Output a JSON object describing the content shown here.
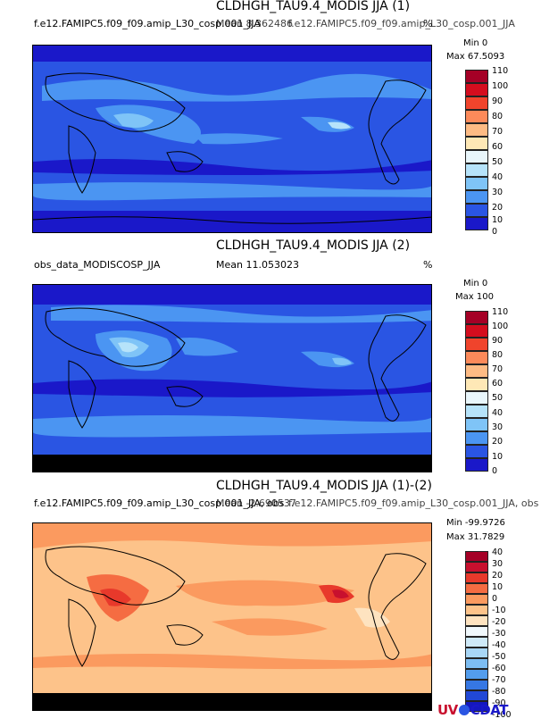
{
  "panels": [
    {
      "title": "CLDHGH_TAU9.4_MODIS JJA (1)",
      "left_label": "f.e12.FAMIPC5.f09_f09.amip_L30_cosp.001_JJA",
      "mean_label": "Mean 8.362486",
      "overlap_label": "f.e12.FAMIPC5.f09_f09.amip_L30_cosp.001_JJA",
      "units": "%",
      "min_label": "Min 0",
      "max_label": "Max 67.5093",
      "colorbar_labels": [
        "110",
        "100",
        "90",
        "80",
        "70",
        "60",
        "50",
        "40",
        "30",
        "20",
        "10",
        "0"
      ],
      "colors": [
        "#a50026",
        "#d40d1e",
        "#f0442c",
        "#fc8a5a",
        "#fdbb84",
        "#fee8b6",
        "#e9f6fb",
        "#b6e3fa",
        "#7fc4f7",
        "#4b95f2",
        "#2a55e3",
        "#1a18c9"
      ]
    },
    {
      "title": "CLDHGH_TAU9.4_MODIS JJA (2)",
      "left_label": "obs_data_MODISCOSP_JJA",
      "mean_label": "Mean 11.053023",
      "overlap_label": "",
      "units": "%",
      "min_label": "Min 0",
      "max_label": "Max 100",
      "colorbar_labels": [
        "110",
        "100",
        "90",
        "80",
        "70",
        "60",
        "50",
        "40",
        "30",
        "20",
        "10",
        "0"
      ],
      "colors": [
        "#a50026",
        "#d40d1e",
        "#f0442c",
        "#fc8a5a",
        "#fdbb84",
        "#fee8b6",
        "#e9f6fb",
        "#b6e3fa",
        "#7fc4f7",
        "#4b95f2",
        "#2a55e3",
        "#1a18c9"
      ]
    },
    {
      "title": "CLDHGH_TAU9.4_MODIS JJA (1)-(2)",
      "left_label": "f.e12.FAMIPC5.f09_f09.amip_L30_cosp.001_JJA, obs",
      "mean_label": "Mean -2.690537",
      "overlap_label": "f.e12.FAMIPC5.f09_f09.amip_L30_cosp.001_JJA, obs",
      "units": "",
      "min_label": "Min -99.9726",
      "max_label": "Max 31.7829",
      "colorbar_labels": [
        "40",
        "30",
        "20",
        "10",
        "0",
        "-10",
        "-20",
        "-30",
        "-40",
        "-50",
        "-60",
        "-70",
        "-80",
        "-90",
        "-100"
      ],
      "colors": [
        "#a50026",
        "#c8102e",
        "#e8392b",
        "#f56c42",
        "#fb9a5f",
        "#fdc38a",
        "#fee3c0",
        "#f0f8fc",
        "#cfeaf9",
        "#a8d6f6",
        "#7dbdf2",
        "#539ded",
        "#3677e3",
        "#2148d6",
        "#1418c0"
      ]
    }
  ],
  "chart_data": [
    {
      "type": "heatmap",
      "title": "CLDHGH_TAU9.4_MODIS JJA (1)",
      "dataset": "f.e12.FAMIPC5.f09_f09.amip_L30_cosp.001_JJA",
      "mean": 8.362486,
      "min": 0,
      "max": 67.5093,
      "units": "%",
      "colorbar_levels": [
        0,
        10,
        20,
        30,
        40,
        50,
        60,
        70,
        80,
        90,
        100,
        110
      ]
    },
    {
      "type": "heatmap",
      "title": "CLDHGH_TAU9.4_MODIS JJA (2)",
      "dataset": "obs_data_MODISCOSP_JJA",
      "mean": 11.053023,
      "min": 0,
      "max": 100,
      "units": "%",
      "colorbar_levels": [
        0,
        10,
        20,
        30,
        40,
        50,
        60,
        70,
        80,
        90,
        100,
        110
      ]
    },
    {
      "type": "heatmap",
      "title": "CLDHGH_TAU9.4_MODIS JJA (1)-(2)",
      "dataset": "f.e12.FAMIPC5.f09_f09.amip_L30_cosp.001_JJA, obs",
      "mean": -2.690537,
      "min": -99.9726,
      "max": 31.7829,
      "colorbar_levels": [
        -100,
        -90,
        -80,
        -70,
        -60,
        -50,
        -40,
        -30,
        -20,
        -10,
        0,
        10,
        20,
        30,
        40
      ]
    }
  ],
  "logo": {
    "part1": "UV",
    "part2": "CDAT"
  }
}
